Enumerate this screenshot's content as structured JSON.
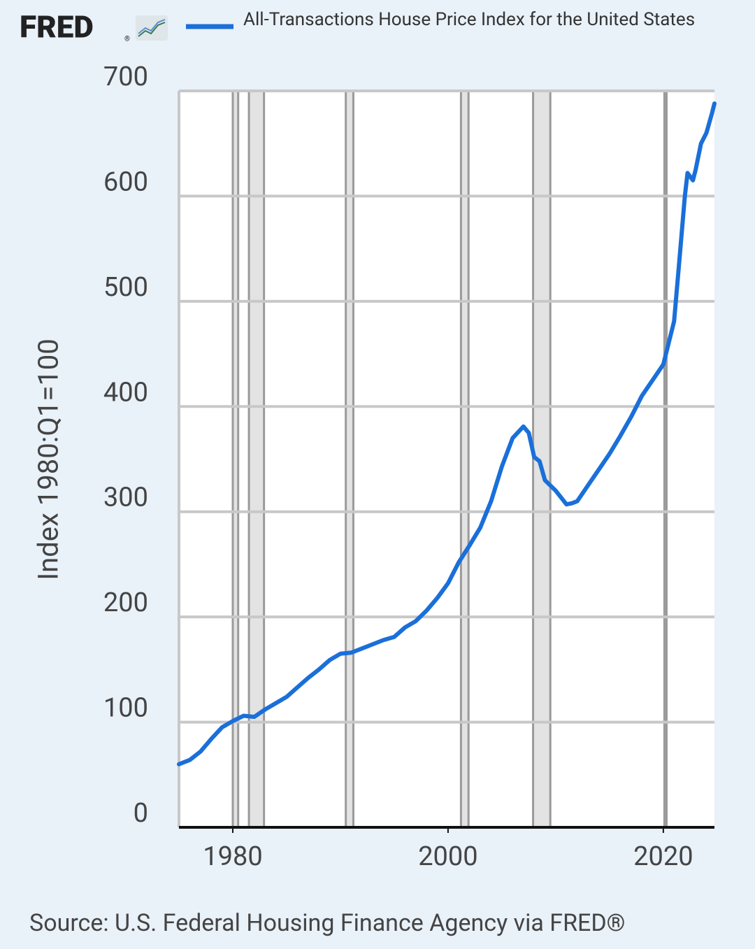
{
  "chart_data": {
    "type": "line",
    "logo": "FRED",
    "logo_mark": "®",
    "y_label": "Index 1980:Q1=100",
    "source": "Source: U.S. Federal Housing Finance Agency via FRED®",
    "xlim": [
      1975,
      2024.75
    ],
    "ylim": [
      0,
      700
    ],
    "xticks": [
      1980,
      2000,
      2020
    ],
    "yticks": [
      0,
      100,
      200,
      300,
      400,
      500,
      600,
      700
    ],
    "grid": true,
    "recessions": [
      [
        1980.0,
        1980.5
      ],
      [
        1981.5,
        1982.9
      ],
      [
        1990.5,
        1991.2
      ],
      [
        2001.2,
        2001.9
      ],
      [
        2007.9,
        2009.5
      ],
      [
        2020.1,
        2020.3
      ]
    ],
    "x": [
      1975,
      1976,
      1977,
      1978,
      1979,
      1980,
      1981,
      1982,
      1983,
      1984,
      1985,
      1986,
      1987,
      1988,
      1989,
      1990,
      1991,
      1992,
      1993,
      1994,
      1995,
      1996,
      1997,
      1998,
      1999,
      2000,
      2001,
      2002,
      2003,
      2004,
      2005,
      2006,
      2007,
      2007.5,
      2008,
      2008.5,
      2009,
      2010,
      2011,
      2011.5,
      2012,
      2013,
      2014,
      2015,
      2016,
      2017,
      2018,
      2019,
      2020,
      2021,
      2021.5,
      2022,
      2022.25,
      2022.75,
      2023,
      2023.5,
      2024,
      2024.5,
      2024.75
    ],
    "series": [
      {
        "name": "All-Transactions House Price Index for the United States",
        "color": "#1a6fd9",
        "values": [
          60,
          64,
          72,
          84,
          95,
          101,
          106,
          105,
          112,
          118,
          124,
          133,
          142,
          150,
          159,
          165,
          166,
          170,
          174,
          178,
          181,
          190,
          196,
          206,
          218,
          232,
          252,
          268,
          285,
          310,
          343,
          370,
          381,
          375,
          352,
          348,
          330,
          320,
          307,
          308,
          310,
          325,
          340,
          355,
          372,
          390,
          410,
          425,
          440,
          481,
          540,
          600,
          622,
          615,
          625,
          650,
          660,
          678,
          688
        ]
      }
    ]
  }
}
